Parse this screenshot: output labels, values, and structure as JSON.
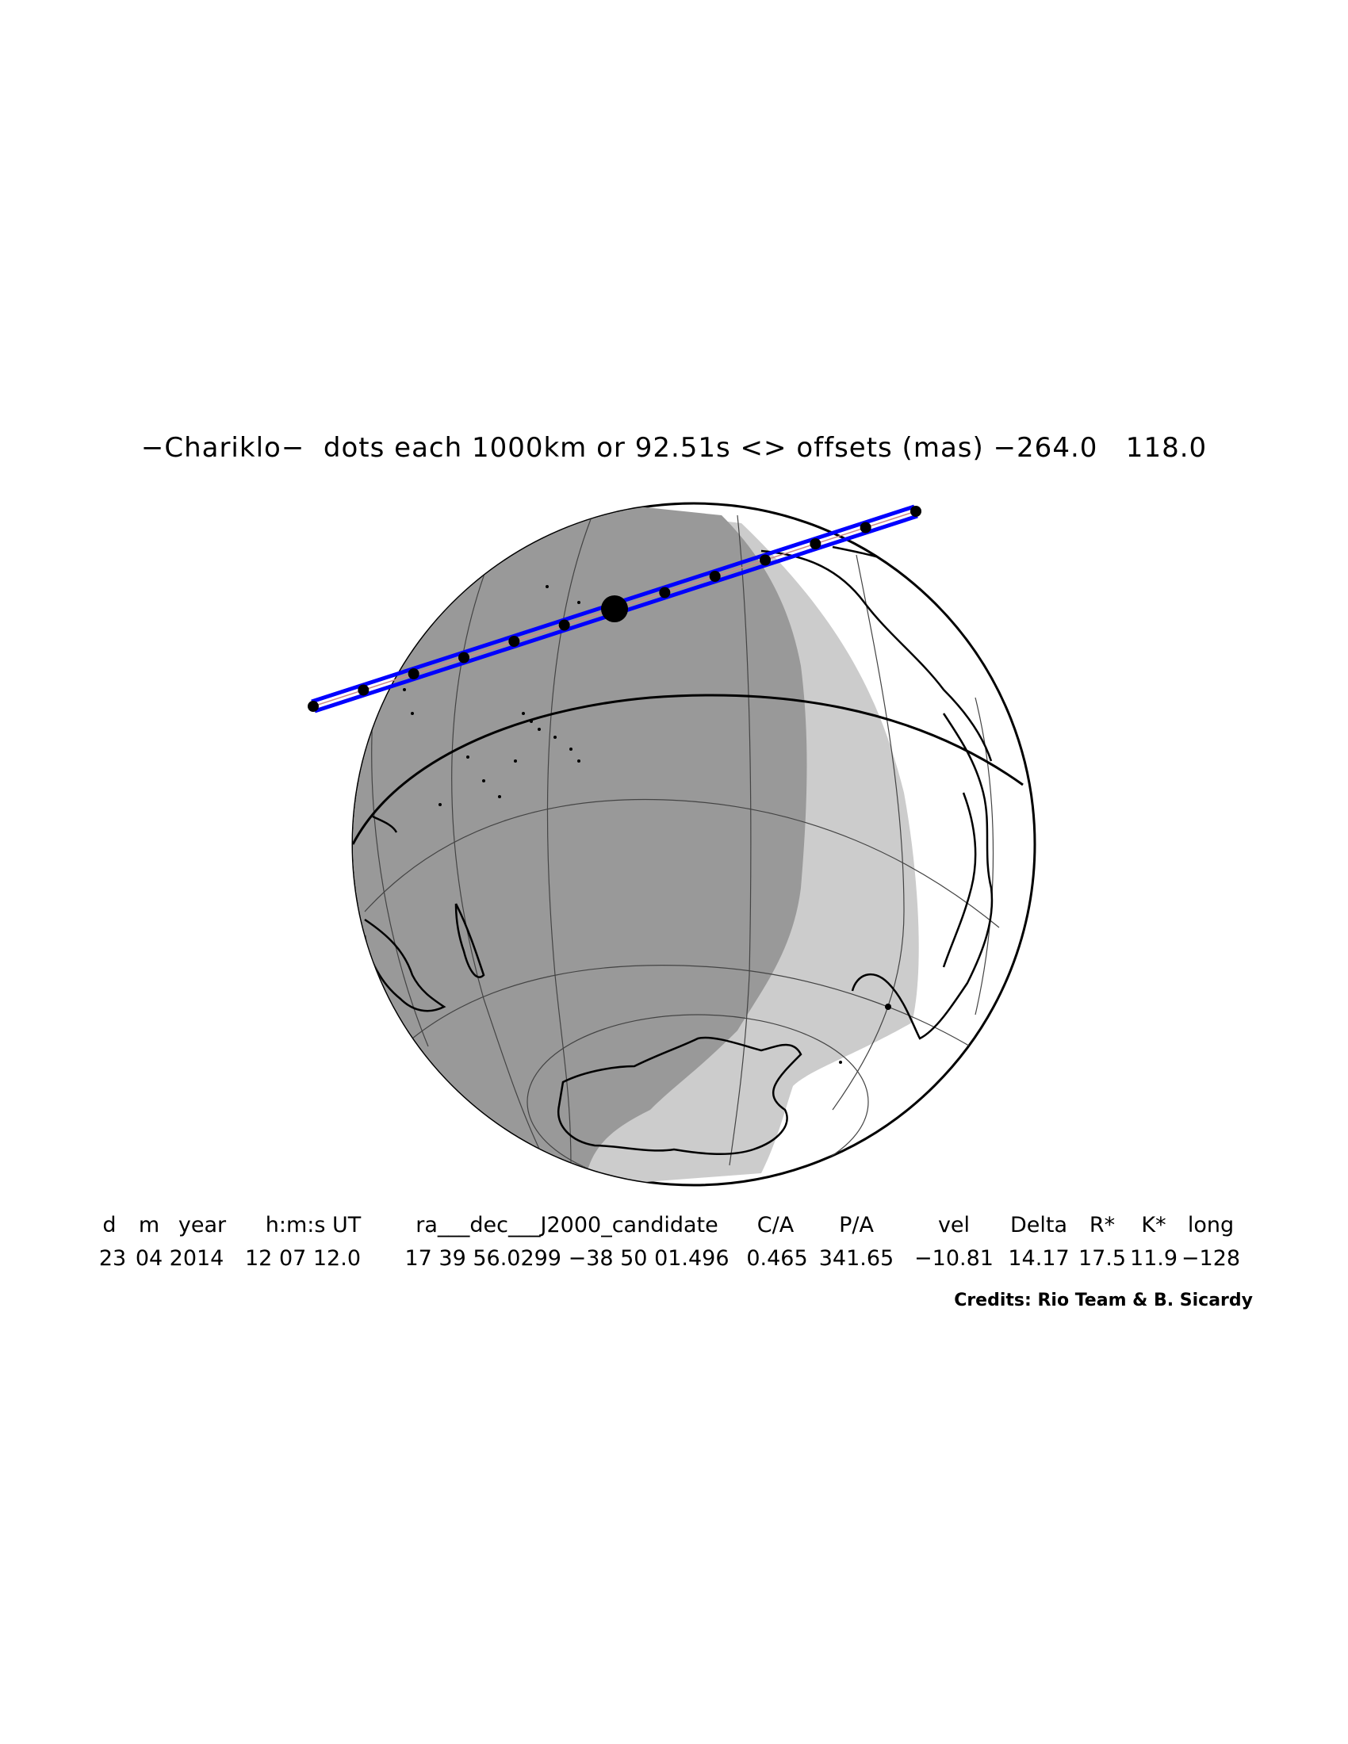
{
  "title": "−Chariklo−  dots each 1000km or 92.51s <> offsets (mas) −264.0   118.0",
  "table": {
    "headers": [
      "d",
      "m",
      "year",
      "h:m:s UT",
      "ra___dec___J2000_candidate",
      "C/A",
      "P/A",
      "vel",
      "Delta",
      "R*",
      "K*",
      "long"
    ],
    "values": [
      "23",
      "04",
      "2014",
      "12 07 12.0",
      "17 39 56.0299 −38 50 01.496",
      "0.465",
      "341.65",
      "−10.81",
      "14.17",
      "17.5",
      "11.9",
      "−128"
    ]
  },
  "credits": "Credits: Rio Team & B. Sicardy",
  "colors": {
    "night": "#999999",
    "twilight": "#cccccc",
    "day": "#ffffff",
    "track": "#0000ff",
    "centerline": "#cc8888",
    "dots": "#000000"
  }
}
